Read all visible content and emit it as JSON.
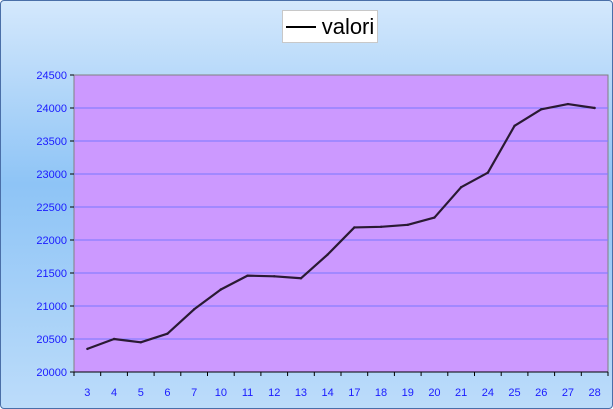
{
  "chart_data": {
    "type": "line",
    "title": "",
    "xlabel": "",
    "ylabel": "",
    "categories": [
      "3",
      "4",
      "5",
      "6",
      "7",
      "10",
      "11",
      "12",
      "13",
      "14",
      "17",
      "18",
      "19",
      "20",
      "21",
      "24",
      "25",
      "26",
      "27",
      "28"
    ],
    "series": [
      {
        "name": "valori",
        "values": [
          20350,
          20500,
          20450,
          20580,
          20950,
          21250,
          21460,
          21450,
          21420,
          21780,
          22190,
          22200,
          22230,
          22340,
          22800,
          23020,
          23730,
          23980,
          24060,
          24000
        ],
        "color": "#2a1a33"
      }
    ],
    "ylim": [
      20000,
      24500
    ],
    "yticks": [
      20000,
      20500,
      21000,
      21500,
      22000,
      22500,
      23000,
      23500,
      24000,
      24500
    ],
    "grid": true,
    "legend_position": "top-center",
    "colors": {
      "plot_background": "#cc99ff",
      "gridline": "#7878ff",
      "tick_label": "#1a1aff",
      "frame_top": "#d4e8fc",
      "frame_mid": "#8ec4f6"
    }
  }
}
